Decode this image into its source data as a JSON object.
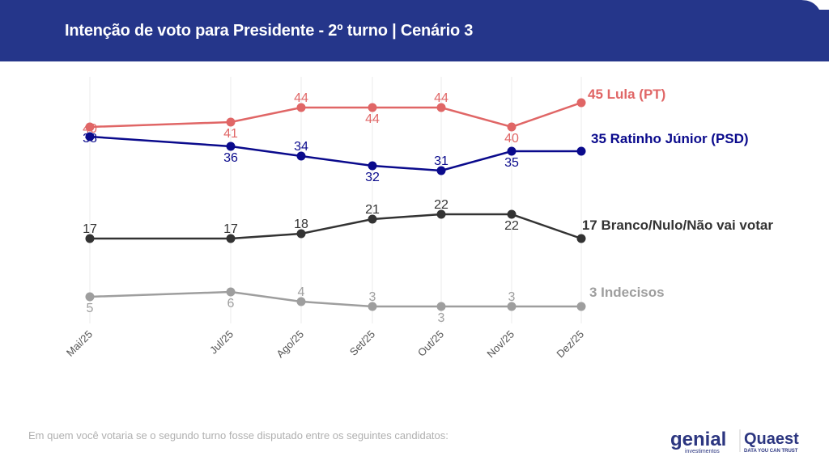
{
  "header": {
    "title": "Intenção de voto para Presidente - 2º turno | Cenário 3",
    "color": "#25368a"
  },
  "chart_data": {
    "type": "line",
    "title": "Intenção de voto para Presidente - 2º turno | Cenário 3",
    "categories": [
      "Mai/25",
      "Jul/25",
      "Ago/25",
      "Set/25",
      "Out/25",
      "Nov/25",
      "Dez/25"
    ],
    "series": [
      {
        "name": "Lula (PT)",
        "end_label": "45 Lula (PT)",
        "color": "#e06666",
        "values": [
          40,
          41,
          44,
          44,
          44,
          40,
          45
        ]
      },
      {
        "name": "Ratinho Júnior (PSD)",
        "end_label": "35 Ratinho Júnior (PSD)",
        "color": "#0a0a8c",
        "values": [
          38,
          36,
          34,
          32,
          31,
          35,
          35
        ]
      },
      {
        "name": "Branco/Nulo/Não vai votar",
        "end_label": "17 Branco/Nulo/Não vai votar",
        "color": "#333333",
        "values": [
          17,
          17,
          18,
          21,
          22,
          22,
          17
        ]
      },
      {
        "name": "Indecisos",
        "end_label": "3 Indecisos",
        "color": "#9e9e9e",
        "values": [
          5,
          6,
          4,
          3,
          3,
          3,
          3
        ]
      }
    ],
    "grid": "vertical",
    "legend": "end-of-line labels"
  },
  "footer": {
    "note": "Em quem você votaria se o segundo turno fosse disputado entre os seguintes candidatos:"
  },
  "logos": {
    "genial": "genial",
    "genial_sub": "investimentos",
    "quaest": "Quaest",
    "quaest_sub": "DATA YOU CAN TRUST"
  }
}
